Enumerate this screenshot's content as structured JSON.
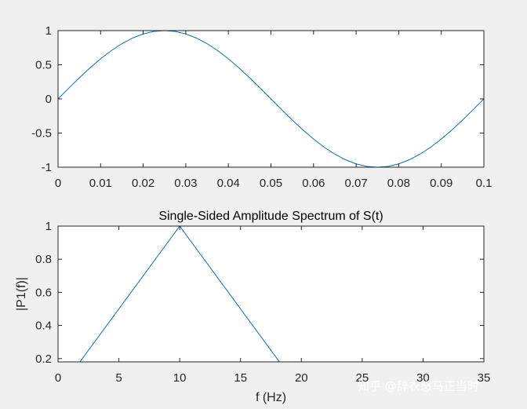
{
  "chart_data": [
    {
      "type": "line",
      "title": "",
      "xlabel": "",
      "ylabel": "",
      "xlim": [
        0,
        0.1
      ],
      "ylim": [
        -1,
        1
      ],
      "xticks": [
        0,
        0.01,
        0.02,
        0.03,
        0.04,
        0.05,
        0.06,
        0.07,
        0.08,
        0.09,
        0.1
      ],
      "xtick_labels": [
        "0",
        "0.01",
        "0.02",
        "0.03",
        "0.04",
        "0.05",
        "0.06",
        "0.07",
        "0.08",
        "0.09",
        "0.1"
      ],
      "yticks": [
        -1,
        -0.5,
        0,
        0.5,
        1
      ],
      "ytick_labels": [
        "-1",
        "-0.5",
        "0",
        "0.5",
        "1"
      ],
      "grid": false,
      "series": [
        {
          "color": "#0072bd",
          "x": [
            0,
            0.0025,
            0.005,
            0.0075,
            0.01,
            0.0125,
            0.015,
            0.0175,
            0.02,
            0.0225,
            0.025,
            0.0275,
            0.03,
            0.0325,
            0.035,
            0.0375,
            0.04,
            0.0425,
            0.045,
            0.0475,
            0.05,
            0.0525,
            0.055,
            0.0575,
            0.06,
            0.0625,
            0.065,
            0.0675,
            0.07,
            0.0725,
            0.075,
            0.0775,
            0.08,
            0.0825,
            0.085,
            0.0875,
            0.09,
            0.0925,
            0.095,
            0.0975,
            0.1
          ],
          "y": [
            0,
            0.156,
            0.309,
            0.454,
            0.588,
            0.707,
            0.809,
            0.891,
            0.951,
            0.988,
            1,
            0.988,
            0.951,
            0.891,
            0.809,
            0.707,
            0.588,
            0.454,
            0.309,
            0.156,
            0,
            -0.156,
            -0.309,
            -0.454,
            -0.588,
            -0.707,
            -0.809,
            -0.891,
            -0.951,
            -0.988,
            -1,
            -0.988,
            -0.951,
            -0.891,
            -0.809,
            -0.707,
            -0.588,
            -0.454,
            -0.309,
            -0.156,
            0
          ]
        }
      ]
    },
    {
      "type": "line",
      "title": "Single-Sided Amplitude Spectrum of S(t)",
      "xlabel": "f (Hz)",
      "ylabel": "|P1(f)|",
      "xlim": [
        0,
        35
      ],
      "ylim": [
        0.18,
        1
      ],
      "xticks": [
        0,
        5,
        10,
        15,
        20,
        25,
        30,
        35
      ],
      "xtick_labels": [
        "0",
        "5",
        "10",
        "15",
        "20",
        "25",
        "30",
        "35"
      ],
      "yticks": [
        0.2,
        0.4,
        0.6,
        0.8,
        1
      ],
      "ytick_labels": [
        "0.2",
        "0.4",
        "0.6",
        "0.8",
        "1"
      ],
      "grid": false,
      "series": [
        {
          "color": "#0072bd",
          "x": [
            0,
            10,
            20
          ],
          "y": [
            0,
            1,
            0
          ]
        }
      ]
    }
  ],
  "watermark": "知乎 @辞衣怒马正当时"
}
